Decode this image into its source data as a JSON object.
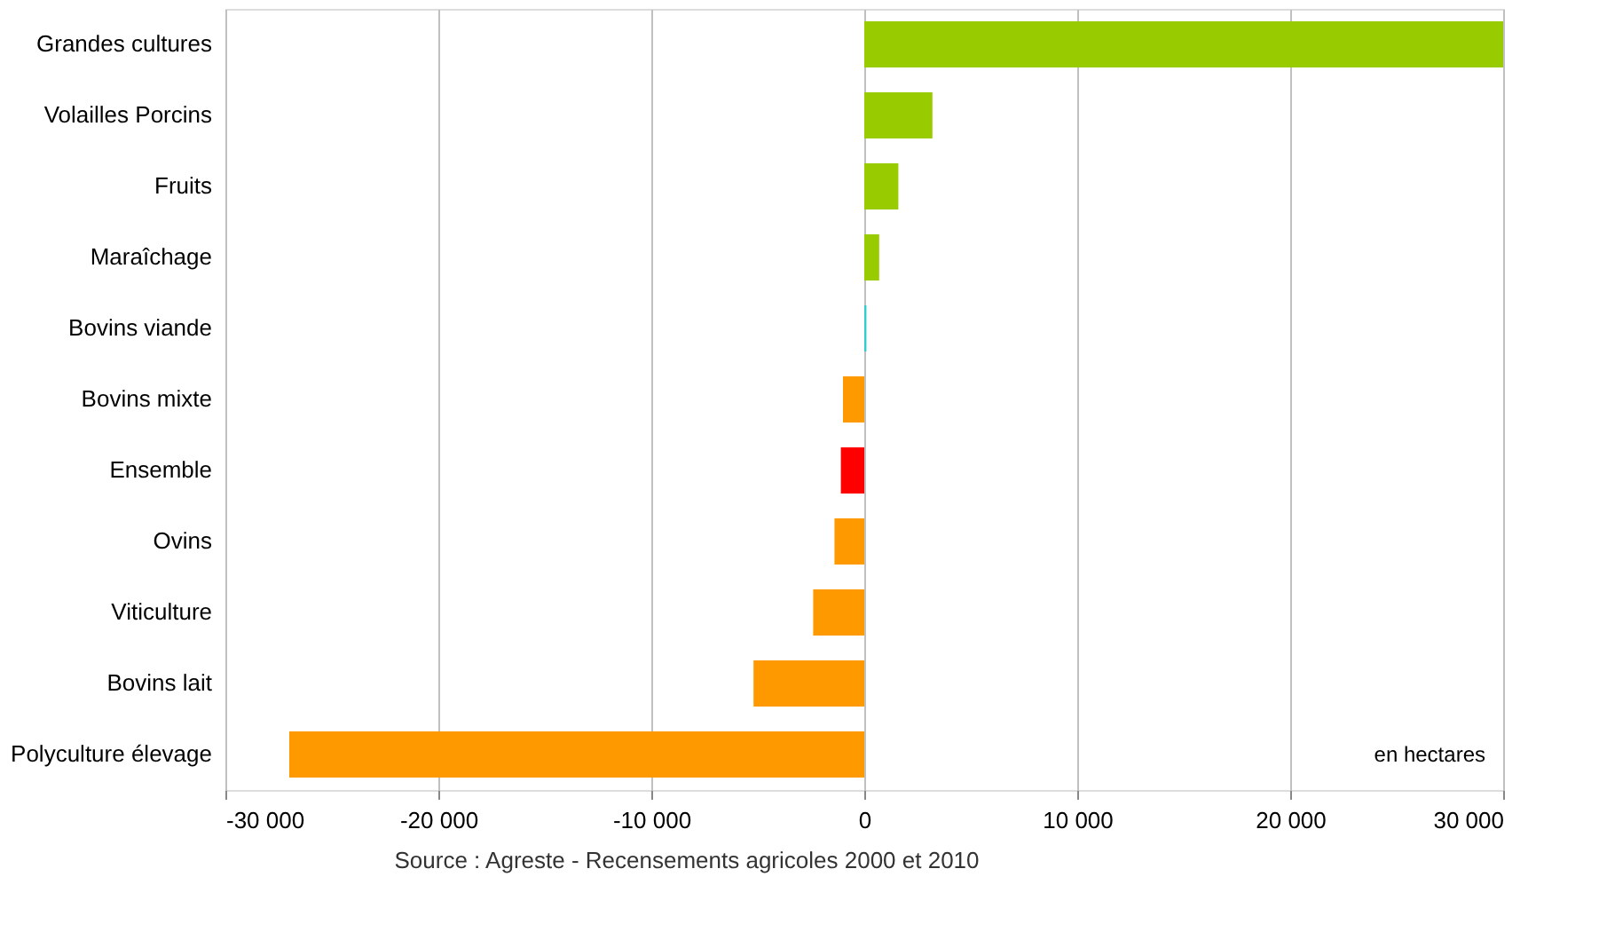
{
  "chart_data": {
    "type": "bar",
    "orientation": "horizontal",
    "categories": [
      "Grandes cultures",
      "Volailles Porcins",
      "Fruits",
      "Maraîchage",
      "Bovins viande",
      "Bovins mixte",
      "Ensemble",
      "Ovins",
      "Viticulture",
      "Bovins lait",
      "Polyculture élevage"
    ],
    "values": [
      30000,
      3200,
      1600,
      700,
      100,
      -1000,
      -1100,
      -1400,
      -2400,
      -5200,
      -27000
    ],
    "colors": [
      "#99cc00",
      "#99cc00",
      "#99cc00",
      "#99cc00",
      "#33cccc",
      "#ff9900",
      "#ff0000",
      "#ff9900",
      "#ff9900",
      "#ff9900",
      "#ff9900"
    ],
    "xlim": [
      -30000,
      30000
    ],
    "xticks": [
      {
        "value": -30000,
        "label": "-30 000"
      },
      {
        "value": -20000,
        "label": "-20 000"
      },
      {
        "value": -10000,
        "label": "-10 000"
      },
      0,
      {
        "value": 10000,
        "label": "10 000"
      },
      {
        "value": 20000,
        "label": "20 000"
      },
      {
        "value": 30000,
        "label": "30 000"
      }
    ],
    "grid": "x",
    "annotations": [
      "en hectares",
      "Source : Agreste - Recensements agricoles 2000 et 2010"
    ]
  }
}
